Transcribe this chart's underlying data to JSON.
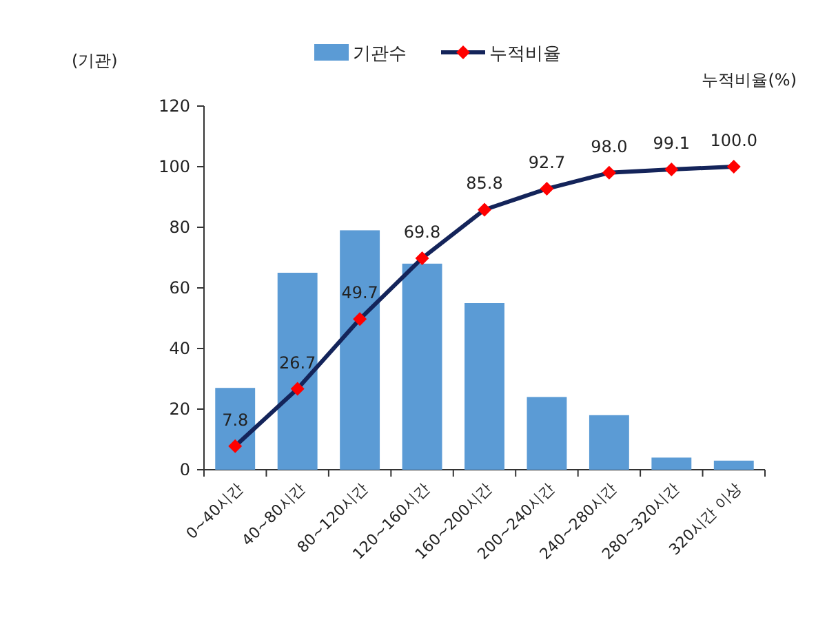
{
  "chart_data": {
    "type": "bar",
    "ylabel": "(기관)",
    "y2label": "누적비율(%)",
    "categories": [
      "0~40시간",
      "40~80시간",
      "80~120시간",
      "120~160시간",
      "160~200시간",
      "200~240시간",
      "240~280시간",
      "280~320시간",
      "320시간 이상"
    ],
    "ylim": [
      0,
      120
    ],
    "yticks": [
      0,
      20,
      40,
      60,
      80,
      100,
      120
    ],
    "legend": "top",
    "series": [
      {
        "name": "기관수",
        "color": "#5b9bd5",
        "values": [
          27,
          65,
          79,
          68,
          55,
          24,
          18,
          4,
          3
        ]
      },
      {
        "name": "누적비율",
        "type": "line",
        "color": "#14245a",
        "marker": "diamond",
        "values": [
          7.8,
          26.7,
          49.7,
          69.8,
          85.8,
          92.7,
          98.0,
          99.1,
          100.0
        ],
        "value_labels": [
          "7.8",
          "26.7",
          "49.7",
          "69.8",
          "85.8",
          "92.7",
          "98.0",
          "99.1",
          "100.0"
        ]
      }
    ]
  }
}
